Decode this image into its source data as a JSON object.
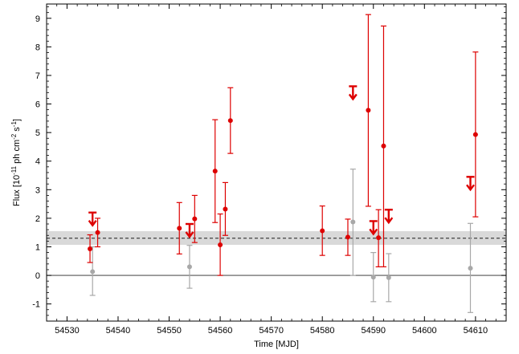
{
  "chart_data": {
    "type": "scatter",
    "xlabel": "Time [MJD]",
    "ylabel_parts": {
      "flux": "Flux [10",
      "exp1": "-11",
      "unit": " ph cm",
      "exp2": "-2",
      "s": " s",
      "exp3": "-1",
      "close": "]"
    },
    "xlim": [
      54526,
      54616
    ],
    "ylim": [
      -1.6,
      9.5
    ],
    "x_ticks": [
      54530,
      54540,
      54550,
      54560,
      54570,
      54580,
      54590,
      54600,
      54610
    ],
    "y_ticks": [
      -1,
      0,
      1,
      2,
      3,
      4,
      5,
      6,
      7,
      8,
      9
    ],
    "zero_line": 0,
    "mean_line": {
      "value": 1.3,
      "band": [
        1.07,
        1.55
      ],
      "color": "#000000",
      "band_color": "#d9d9d9"
    },
    "grid": false,
    "series": [
      {
        "color": "#dd0000",
        "points": [
          {
            "x": 54534.5,
            "y": 0.93,
            "lo": 0.45,
            "hi": 1.42
          },
          {
            "x": 54536.0,
            "y": 1.5,
            "lo": 1.0,
            "hi": 2.0
          },
          {
            "x": 54552.0,
            "y": 1.65,
            "lo": 0.75,
            "hi": 2.55
          },
          {
            "x": 54555.0,
            "y": 1.98,
            "lo": 1.15,
            "hi": 2.8
          },
          {
            "x": 54559.0,
            "y": 3.65,
            "lo": 1.85,
            "hi": 5.45
          },
          {
            "x": 54560.0,
            "y": 1.07,
            "lo": 0.0,
            "hi": 2.15
          },
          {
            "x": 54561.0,
            "y": 2.32,
            "lo": 1.4,
            "hi": 3.25
          },
          {
            "x": 54562.0,
            "y": 5.42,
            "lo": 4.27,
            "hi": 6.57
          },
          {
            "x": 54580.0,
            "y": 1.56,
            "lo": 0.7,
            "hi": 2.43
          },
          {
            "x": 54585.0,
            "y": 1.34,
            "lo": 0.7,
            "hi": 1.97
          },
          {
            "x": 54589.0,
            "y": 5.78,
            "lo": 2.42,
            "hi": 9.13
          },
          {
            "x": 54591.0,
            "y": 1.32,
            "lo": 0.3,
            "hi": 2.3
          },
          {
            "x": 54592.0,
            "y": 4.53,
            "lo": 0.3,
            "hi": 8.73
          },
          {
            "x": 54610.0,
            "y": 4.93,
            "lo": 2.05,
            "hi": 7.82
          }
        ],
        "upper_limits": [
          {
            "x": 54535.0,
            "y": 2.2
          },
          {
            "x": 54554.0,
            "y": 1.8
          },
          {
            "x": 54586.0,
            "y": 6.62
          },
          {
            "x": 54590.0,
            "y": 1.9
          },
          {
            "x": 54593.0,
            "y": 2.3
          },
          {
            "x": 54609.0,
            "y": 3.45
          }
        ]
      },
      {
        "color": "#a8a8a8",
        "points": [
          {
            "x": 54535.0,
            "y": 0.13,
            "lo": -0.7,
            "hi": 1.0
          },
          {
            "x": 54554.0,
            "y": 0.3,
            "lo": -0.45,
            "hi": 1.05
          },
          {
            "x": 54586.0,
            "y": 1.87,
            "lo": 0.0,
            "hi": 3.72
          },
          {
            "x": 54590.0,
            "y": -0.06,
            "lo": -0.92,
            "hi": 0.8
          },
          {
            "x": 54593.0,
            "y": -0.08,
            "lo": -0.92,
            "hi": 0.76
          },
          {
            "x": 54609.0,
            "y": 0.25,
            "lo": -1.3,
            "hi": 1.82
          }
        ]
      }
    ]
  }
}
